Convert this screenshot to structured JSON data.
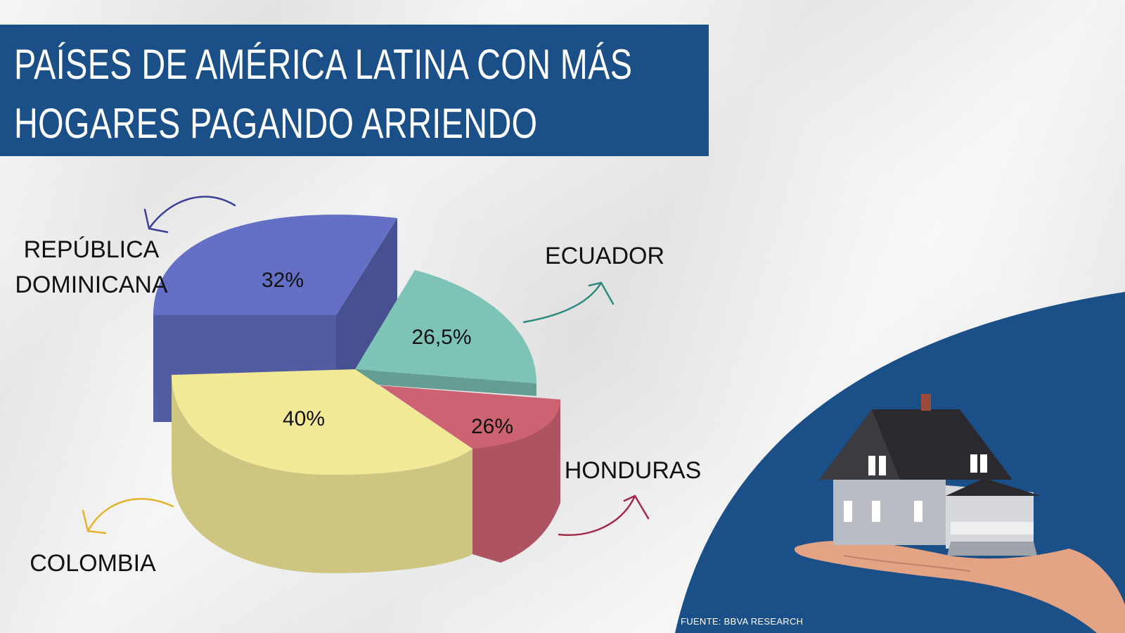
{
  "title_line1": "PAÍSES DE AMÉRICA LATINA CON MÁS",
  "title_line2": "HOGARES PAGANDO ARRIENDO",
  "source": "FUENTE: BBVA RESEARCH",
  "colors": {
    "title_band": "#1a4f87",
    "republica_dominicana": "#6470c6",
    "ecuador": "#7dc4b7",
    "honduras": "#cc6272",
    "colombia": "#f2e996"
  },
  "chart_data": {
    "type": "pie",
    "categories": [
      "República Dominicana",
      "Ecuador",
      "Honduras",
      "Colombia"
    ],
    "slices": [
      {
        "label_line1": "REPÚBLICA",
        "label_line2": "DOMINICANA",
        "value": 32,
        "value_label": "32%"
      },
      {
        "label_line1": "ECUADOR",
        "label_line2": "",
        "value": 26.5,
        "value_label": "26,5%"
      },
      {
        "label_line1": "HONDURAS",
        "label_line2": "",
        "value": 26,
        "value_label": "26%"
      },
      {
        "label_line1": "COLOMBIA",
        "label_line2": "",
        "value": 40,
        "value_label": "40%"
      }
    ]
  }
}
